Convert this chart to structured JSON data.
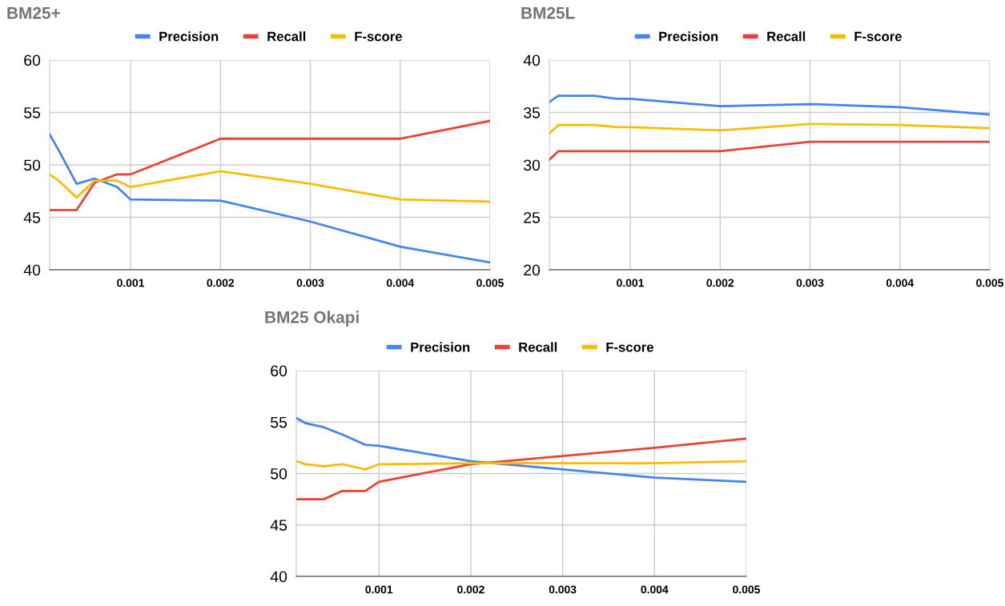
{
  "chart_data": [
    {
      "type": "line",
      "title": "BM25+",
      "x": [
        0.0001,
        0.0002,
        0.0004,
        0.0006,
        0.00085,
        0.001,
        0.002,
        0.003,
        0.004,
        0.005
      ],
      "xlim": [
        0.0001,
        0.005
      ],
      "xticks": [
        0.001,
        0.002,
        0.003,
        0.004,
        0.005
      ],
      "ylim": [
        40,
        60
      ],
      "yticks": [
        40,
        45,
        50,
        55,
        60
      ],
      "grid": true,
      "legend": "top",
      "marker": "none",
      "line_style": "solid",
      "series": [
        {
          "name": "Precision",
          "color": "#4285f4",
          "values": [
            52.9,
            51.4,
            48.2,
            48.7,
            47.9,
            46.7,
            46.6,
            44.6,
            42.2,
            40.7
          ]
        },
        {
          "name": "Recall",
          "color": "#ea4335",
          "values": [
            45.7,
            45.7,
            45.7,
            48.3,
            49.1,
            49.1,
            52.5,
            52.5,
            52.5,
            54.2
          ]
        },
        {
          "name": "F-score",
          "color": "#fbbc04",
          "values": [
            49.1,
            48.5,
            46.9,
            48.5,
            48.5,
            47.9,
            49.4,
            48.2,
            46.7,
            46.5
          ]
        }
      ]
    },
    {
      "type": "line",
      "title": "BM25L",
      "x": [
        0.0001,
        0.0002,
        0.0004,
        0.0006,
        0.00085,
        0.001,
        0.002,
        0.003,
        0.004,
        0.005
      ],
      "xlim": [
        0.0001,
        0.005
      ],
      "xticks": [
        0.001,
        0.002,
        0.003,
        0.004,
        0.005
      ],
      "ylim": [
        20,
        40
      ],
      "yticks": [
        20,
        25,
        30,
        35,
        40
      ],
      "grid": true,
      "legend": "top",
      "marker": "none",
      "line_style": "solid",
      "series": [
        {
          "name": "Precision",
          "color": "#4285f4",
          "values": [
            36.0,
            36.6,
            36.6,
            36.6,
            36.3,
            36.3,
            35.6,
            35.8,
            35.5,
            34.8
          ]
        },
        {
          "name": "Recall",
          "color": "#ea4335",
          "values": [
            30.5,
            31.3,
            31.3,
            31.3,
            31.3,
            31.3,
            31.3,
            32.2,
            32.2,
            32.2
          ]
        },
        {
          "name": "F-score",
          "color": "#fbbc04",
          "values": [
            33.0,
            33.8,
            33.8,
            33.8,
            33.6,
            33.6,
            33.3,
            33.9,
            33.8,
            33.5
          ]
        }
      ]
    },
    {
      "type": "line",
      "title": "BM25 Okapi",
      "x": [
        0.0001,
        0.0002,
        0.0004,
        0.0006,
        0.00085,
        0.001,
        0.002,
        0.003,
        0.004,
        0.005
      ],
      "xlim": [
        0.0001,
        0.005
      ],
      "xticks": [
        0.001,
        0.002,
        0.003,
        0.004,
        0.005
      ],
      "ylim": [
        40,
        60
      ],
      "yticks": [
        40,
        45,
        50,
        55,
        60
      ],
      "grid": true,
      "legend": "top",
      "marker": "none",
      "line_style": "solid",
      "series": [
        {
          "name": "Precision",
          "color": "#4285f4",
          "values": [
            55.4,
            54.9,
            54.5,
            53.8,
            52.8,
            52.7,
            51.2,
            50.4,
            49.6,
            49.2
          ]
        },
        {
          "name": "Recall",
          "color": "#ea4335",
          "values": [
            47.5,
            47.5,
            47.5,
            48.3,
            48.3,
            49.2,
            50.9,
            51.7,
            52.5,
            53.4
          ]
        },
        {
          "name": "F-score",
          "color": "#fbbc04",
          "values": [
            51.2,
            50.9,
            50.7,
            50.9,
            50.4,
            50.9,
            51.0,
            51.0,
            51.0,
            51.2
          ]
        }
      ]
    }
  ]
}
